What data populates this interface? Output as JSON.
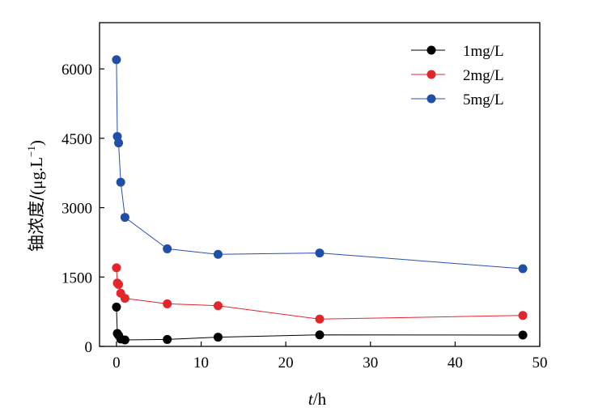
{
  "chart_data": {
    "type": "line",
    "xlabel_italic": "t",
    "xlabel_rest": "/h",
    "ylabel_cn": "铀浓度/",
    "ylabel_unit_open": "(μg.L",
    "ylabel_unit_sup": "−1",
    "ylabel_unit_close": ")",
    "xlim": [
      -2,
      50
    ],
    "ylim": [
      0,
      7000
    ],
    "x_ticks": [
      0,
      10,
      20,
      30,
      40,
      50
    ],
    "y_ticks": [
      0,
      1500,
      3000,
      4500,
      6000
    ],
    "x_tick_labels": [
      "0",
      "10",
      "20",
      "30",
      "40",
      "50"
    ],
    "y_tick_labels": [
      "0",
      "1500",
      "3000",
      "4500",
      "6000"
    ],
    "legend_position": "top-right",
    "series": [
      {
        "name": "1mg/L",
        "color": "#000000",
        "line_color": "#000000",
        "x": [
          0,
          0.1,
          0.25,
          0.5,
          1,
          6,
          12,
          24,
          48
        ],
        "y": [
          850,
          280,
          240,
          160,
          140,
          150,
          200,
          250,
          245
        ]
      },
      {
        "name": "2mg/L",
        "color": "#e3262c",
        "line_color": "#e3262c",
        "x": [
          0,
          0.1,
          0.25,
          0.5,
          1,
          6,
          12,
          24,
          48
        ],
        "y": [
          1700,
          1370,
          1340,
          1150,
          1040,
          920,
          880,
          590,
          670
        ]
      },
      {
        "name": "5mg/L",
        "color": "#1f4fa8",
        "line_color": "#2a4fb5",
        "x": [
          0,
          0.1,
          0.25,
          0.5,
          1,
          6,
          12,
          24,
          48
        ],
        "y": [
          6200,
          4540,
          4400,
          3550,
          2790,
          2110,
          1990,
          2020,
          1680
        ]
      }
    ]
  }
}
